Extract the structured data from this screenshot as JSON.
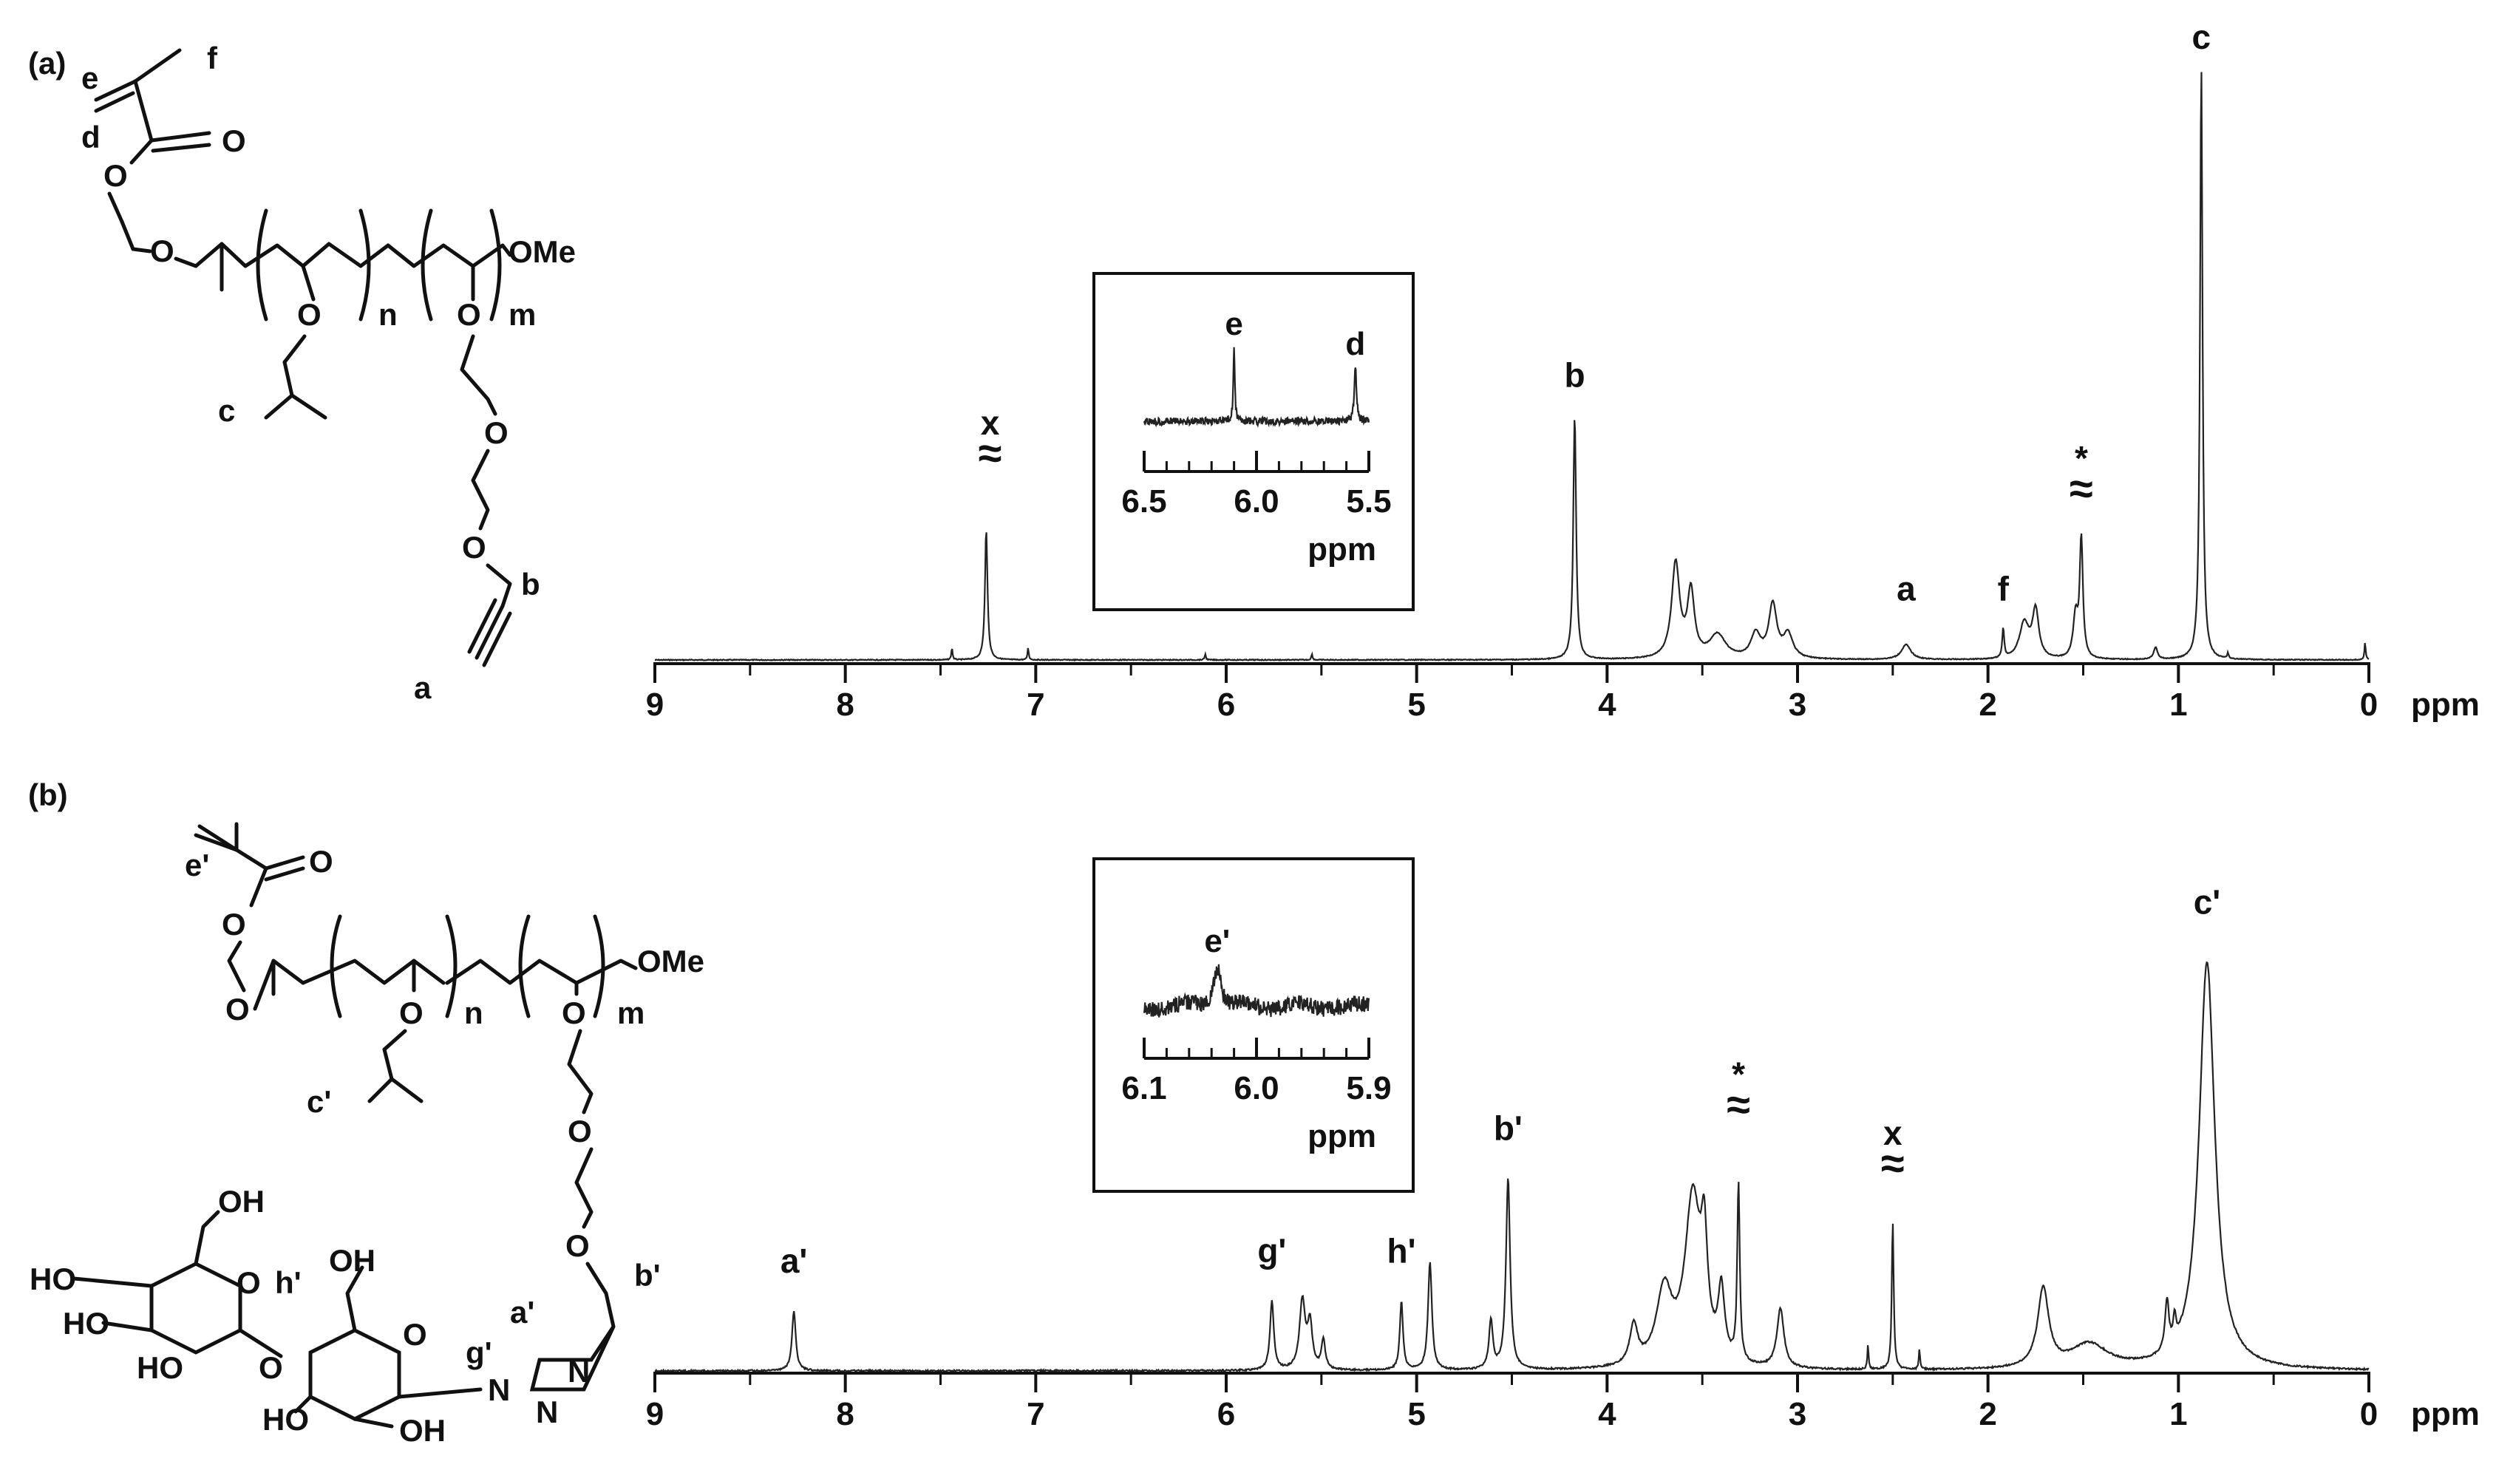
{
  "chart_data": [
    {
      "type": "line",
      "panel_label": "(a)",
      "xlabel": "ppm",
      "xlim": [
        9,
        0
      ],
      "x_ticks": [
        "9",
        "8",
        "7",
        "6",
        "5",
        "4",
        "3",
        "2",
        "1",
        "0"
      ],
      "x_tick_values": [
        9,
        8,
        7,
        6,
        5,
        4,
        3,
        2,
        1,
        0
      ],
      "peaks": [
        {
          "ppm": 7.44,
          "h": 0.02,
          "w": 0.004
        },
        {
          "ppm": 7.26,
          "h": 0.22,
          "w": 0.008
        },
        {
          "ppm": 7.04,
          "h": 0.02,
          "w": 0.004
        },
        {
          "ppm": 6.11,
          "h": 0.01,
          "w": 0.004
        },
        {
          "ppm": 5.55,
          "h": 0.01,
          "w": 0.004
        },
        {
          "ppm": 4.17,
          "h": 0.41,
          "w": 0.009
        },
        {
          "ppm": 3.64,
          "h": 0.16,
          "w": 0.025
        },
        {
          "ppm": 3.56,
          "h": 0.11,
          "w": 0.022
        },
        {
          "ppm": 3.42,
          "h": 0.04,
          "w": 0.05
        },
        {
          "ppm": 3.22,
          "h": 0.04,
          "w": 0.03
        },
        {
          "ppm": 3.13,
          "h": 0.09,
          "w": 0.025
        },
        {
          "ppm": 3.05,
          "h": 0.04,
          "w": 0.03
        },
        {
          "ppm": 2.43,
          "h": 0.025,
          "w": 0.03
        },
        {
          "ppm": 1.92,
          "h": 0.05,
          "w": 0.006
        },
        {
          "ppm": 1.81,
          "h": 0.06,
          "w": 0.03
        },
        {
          "ppm": 1.75,
          "h": 0.08,
          "w": 0.02
        },
        {
          "ppm": 1.54,
          "h": 0.07,
          "w": 0.015
        },
        {
          "ppm": 1.51,
          "h": 0.2,
          "w": 0.01
        },
        {
          "ppm": 1.12,
          "h": 0.02,
          "w": 0.012
        },
        {
          "ppm": 0.88,
          "h": 1.0,
          "w": 0.008
        },
        {
          "ppm": 0.74,
          "h": 0.01,
          "w": 0.004
        },
        {
          "ppm": 0.02,
          "h": 0.03,
          "w": 0.004
        }
      ],
      "peak_labels": [
        {
          "text": "x",
          "ppm": 7.24,
          "level": 0.38,
          "break": "≈"
        },
        {
          "text": "b",
          "ppm": 4.17,
          "level": 0.46
        },
        {
          "text": "a",
          "ppm": 2.43,
          "level": 0.1
        },
        {
          "text": "f",
          "ppm": 1.92,
          "level": 0.1
        },
        {
          "text": "*",
          "ppm": 1.51,
          "level": 0.32,
          "break": "≈"
        },
        {
          "text": "c",
          "ppm": 0.88,
          "level": 1.03
        }
      ],
      "inset": {
        "xlabel": "ppm",
        "xlim": [
          6.5,
          5.5
        ],
        "x_ticks": [
          "6.5",
          "6.0",
          "5.5"
        ],
        "x_tick_values": [
          6.5,
          6.0,
          5.5
        ],
        "peaks": [
          {
            "ppm": 6.1,
            "h": 0.62,
            "w": 0.004
          },
          {
            "ppm": 5.56,
            "h": 0.45,
            "w": 0.006
          }
        ],
        "labels": [
          {
            "text": "e",
            "ppm": 6.1
          },
          {
            "text": "d",
            "ppm": 5.56
          }
        ]
      }
    },
    {
      "type": "line",
      "panel_label": "(b)",
      "xlabel": "ppm",
      "xlim": [
        9,
        0
      ],
      "x_ticks": [
        "9",
        "8",
        "7",
        "6",
        "5",
        "4",
        "3",
        "2",
        "1",
        "0"
      ],
      "x_tick_values": [
        9,
        8,
        7,
        6,
        5,
        4,
        3,
        2,
        1,
        0
      ],
      "peaks": [
        {
          "ppm": 8.27,
          "h": 0.12,
          "w": 0.012
        },
        {
          "ppm": 5.76,
          "h": 0.14,
          "w": 0.012
        },
        {
          "ppm": 5.6,
          "h": 0.14,
          "w": 0.018
        },
        {
          "ppm": 5.56,
          "h": 0.09,
          "w": 0.015
        },
        {
          "ppm": 5.49,
          "h": 0.06,
          "w": 0.012
        },
        {
          "ppm": 5.08,
          "h": 0.14,
          "w": 0.01
        },
        {
          "ppm": 4.93,
          "h": 0.22,
          "w": 0.012
        },
        {
          "ppm": 4.61,
          "h": 0.1,
          "w": 0.012
        },
        {
          "ppm": 4.52,
          "h": 0.39,
          "w": 0.013
        },
        {
          "ppm": 3.86,
          "h": 0.08,
          "w": 0.025
        },
        {
          "ppm": 3.7,
          "h": 0.15,
          "w": 0.05
        },
        {
          "ppm": 3.55,
          "h": 0.34,
          "w": 0.05
        },
        {
          "ppm": 3.49,
          "h": 0.2,
          "w": 0.02
        },
        {
          "ppm": 3.4,
          "h": 0.14,
          "w": 0.02
        },
        {
          "ppm": 3.31,
          "h": 0.36,
          "w": 0.008
        },
        {
          "ppm": 3.09,
          "h": 0.12,
          "w": 0.022
        },
        {
          "ppm": 2.63,
          "h": 0.05,
          "w": 0.004
        },
        {
          "ppm": 2.5,
          "h": 0.3,
          "w": 0.006
        },
        {
          "ppm": 2.36,
          "h": 0.04,
          "w": 0.004
        },
        {
          "ppm": 1.71,
          "h": 0.16,
          "w": 0.035
        },
        {
          "ppm": 1.47,
          "h": 0.05,
          "w": 0.12
        },
        {
          "ppm": 1.06,
          "h": 0.1,
          "w": 0.012
        },
        {
          "ppm": 1.02,
          "h": 0.05,
          "w": 0.008
        },
        {
          "ppm": 0.85,
          "h": 0.83,
          "w": 0.05
        }
      ],
      "peak_labels": [
        {
          "text": "a'",
          "ppm": 8.27,
          "level": 0.2
        },
        {
          "text": "g'",
          "ppm": 5.76,
          "level": 0.22
        },
        {
          "text": "h'",
          "ppm": 5.08,
          "level": 0.22
        },
        {
          "text": "b'",
          "ppm": 4.52,
          "level": 0.47
        },
        {
          "text": "*",
          "ppm": 3.31,
          "level": 0.58,
          "break": "≈"
        },
        {
          "text": "x",
          "ppm": 2.5,
          "level": 0.46,
          "break": "≈"
        },
        {
          "text": "c'",
          "ppm": 0.85,
          "level": 0.93
        }
      ],
      "inset": {
        "xlabel": "ppm",
        "xlim": [
          6.1,
          5.9
        ],
        "x_ticks": [
          "6.1",
          "6.0",
          "5.9"
        ],
        "x_tick_values": [
          6.1,
          6.0,
          5.9
        ],
        "peaks": [
          {
            "ppm": 6.035,
            "h": 0.35,
            "w": 0.004
          }
        ],
        "labels": [
          {
            "text": "e'",
            "ppm": 6.035
          }
        ]
      }
    }
  ],
  "structures": {
    "a": {
      "atom_labels": [
        "O",
        "O",
        "O",
        "O",
        "O",
        "O",
        "OMe"
      ],
      "subscripts": [
        "n",
        "m"
      ],
      "proton_labels": [
        "e",
        "f",
        "d",
        "c",
        "b",
        "a"
      ]
    },
    "b": {
      "atom_labels": [
        "O",
        "O",
        "O",
        "O",
        "O",
        "O",
        "OMe",
        "O",
        "OH",
        "HO",
        "HO",
        "O",
        "OH",
        "O",
        "O",
        "HO",
        "OH",
        "N",
        "N",
        "N"
      ],
      "subscripts": [
        "n",
        "m"
      ],
      "proton_labels": [
        "e'",
        "c'",
        "h'",
        "a'",
        "g'",
        "b'"
      ]
    }
  }
}
